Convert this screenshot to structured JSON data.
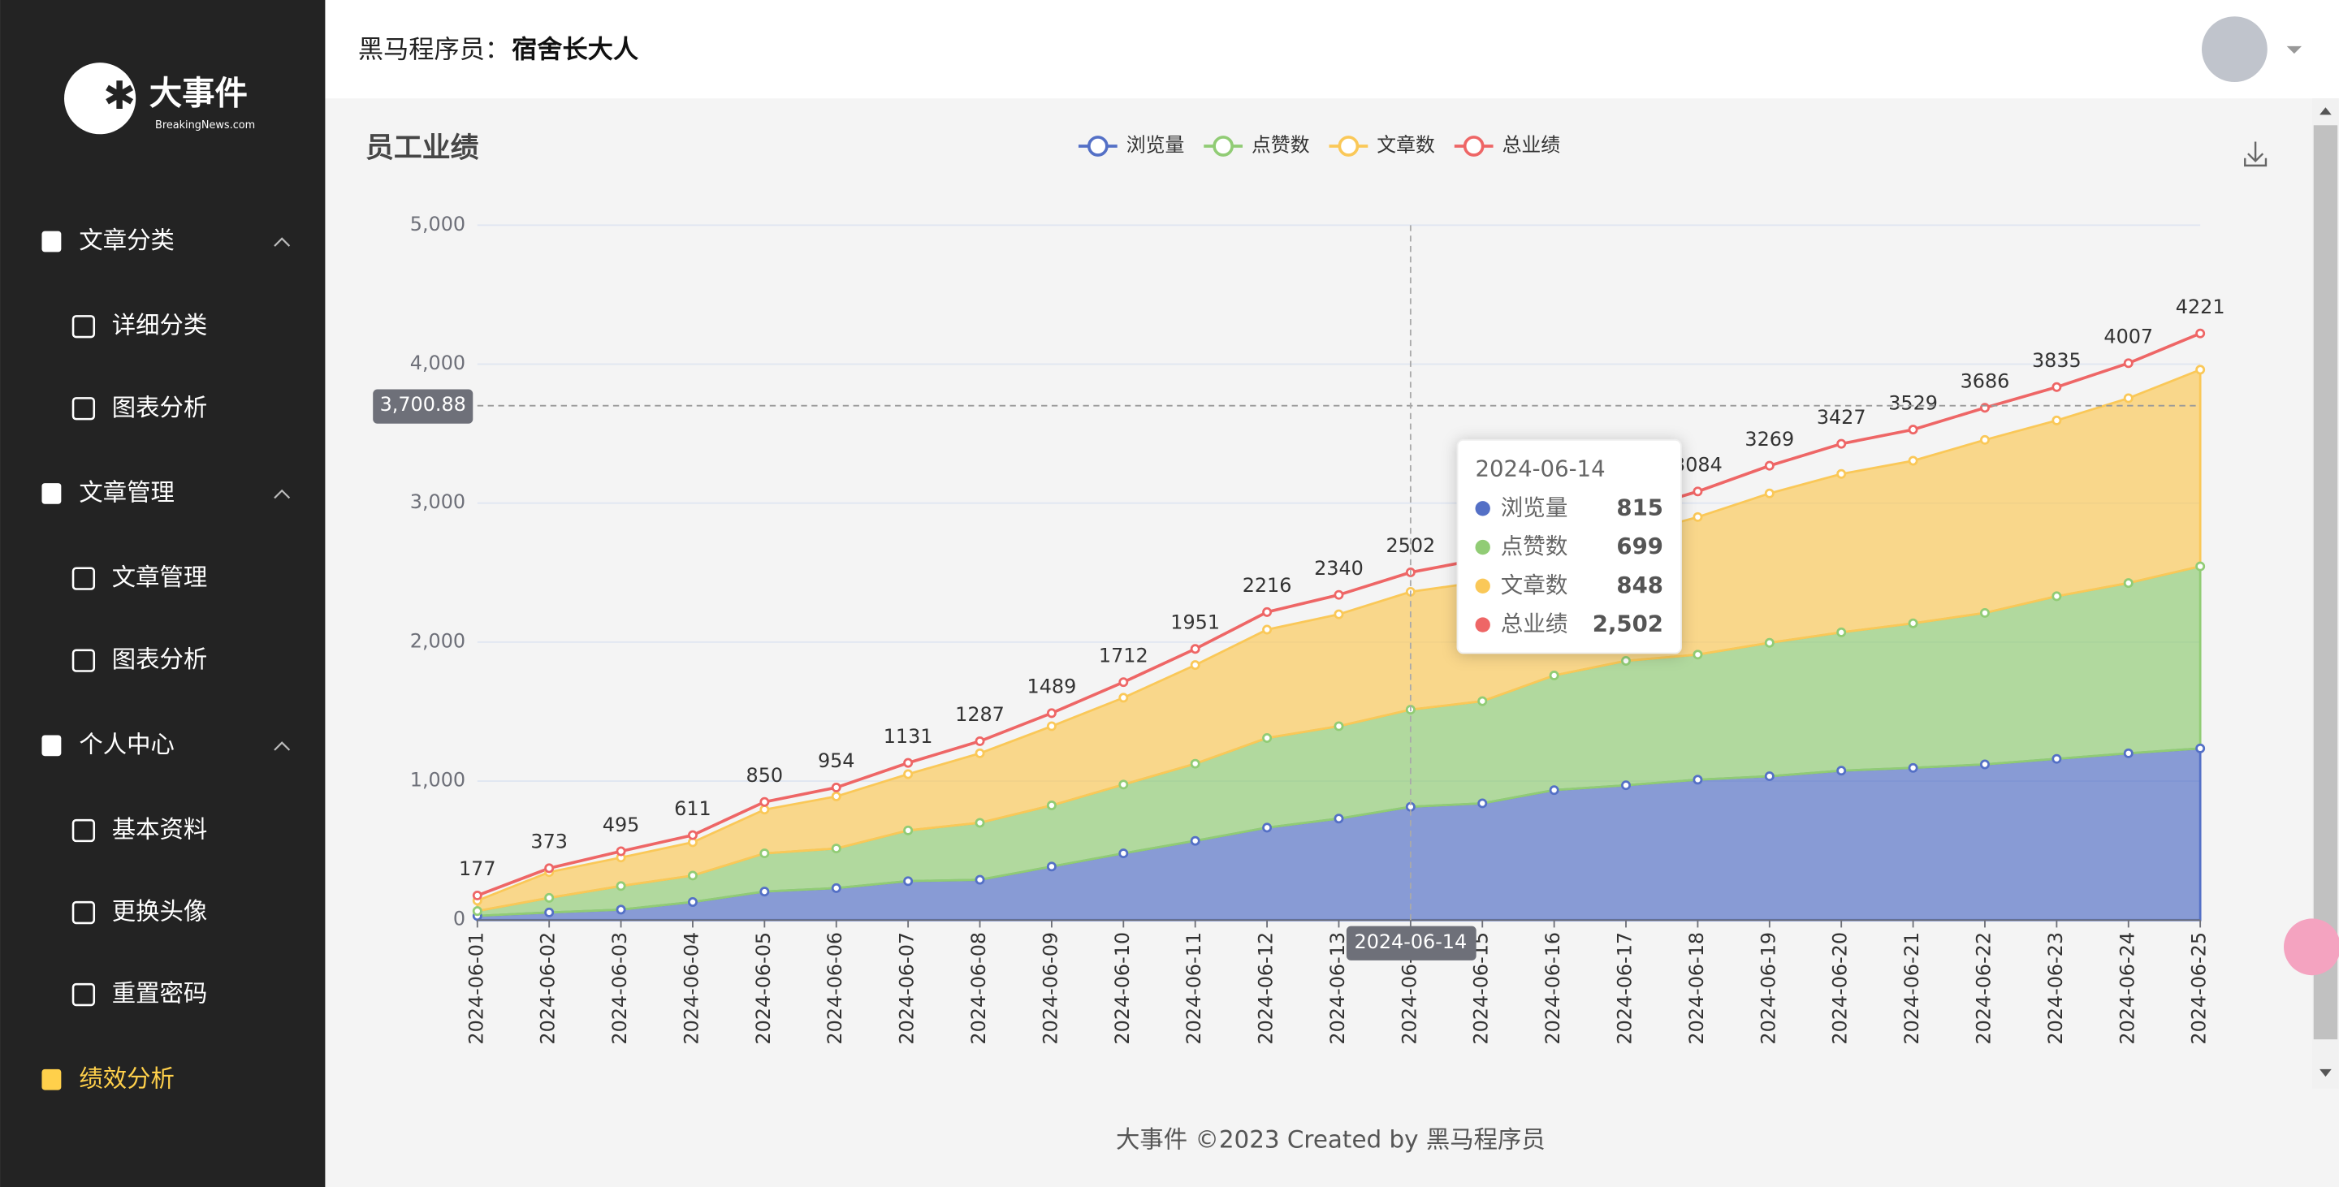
{
  "sidebar": {
    "logo": {
      "title": "大事件",
      "subtitle": "BreakingNews.com"
    },
    "menu": [
      {
        "label": "文章分类",
        "children": [
          "详细分类",
          "图表分析"
        ]
      },
      {
        "label": "文章管理",
        "children": [
          "文章管理",
          "图表分析"
        ]
      },
      {
        "label": "个人中心",
        "children": [
          "基本资料",
          "更换头像",
          "重置密码"
        ]
      },
      {
        "label": "绩效分析",
        "active": true
      }
    ]
  },
  "header": {
    "prefix": "黑马程序员：",
    "user": "宿舍长大人"
  },
  "chart_data": {
    "type": "stacked-area",
    "title": "员工业绩",
    "x": [
      "2024-06-01",
      "2024-06-02",
      "2024-06-03",
      "2024-06-04",
      "2024-06-05",
      "2024-06-06",
      "2024-06-07",
      "2024-06-08",
      "2024-06-09",
      "2024-06-10",
      "2024-06-11",
      "2024-06-12",
      "2024-06-13",
      "2024-06-14",
      "2024-06-15",
      "2024-06-16",
      "2024-06-17",
      "2024-06-18",
      "2024-06-19",
      "2024-06-20",
      "2024-06-21",
      "2024-06-22",
      "2024-06-23",
      "2024-06-24",
      "2024-06-25"
    ],
    "series": [
      {
        "name": "浏览量",
        "color": "#5470c6",
        "stack": true,
        "values": [
          30,
          55,
          75,
          130,
          205,
          230,
          280,
          290,
          385,
          480,
          570,
          665,
          730,
          815,
          840,
          935,
          970,
          1010,
          1035,
          1075,
          1095,
          1120,
          1160,
          1200,
          1235
        ]
      },
      {
        "name": "点赞数",
        "color": "#91cc75",
        "stack": true,
        "values": [
          35,
          105,
          170,
          190,
          275,
          285,
          365,
          410,
          440,
          495,
          555,
          645,
          665,
          699,
          735,
          825,
          895,
          900,
          960,
          995,
          1040,
          1090,
          1170,
          1225,
          1310
        ]
      },
      {
        "name": "文章数",
        "color": "#fac858",
        "stack": true,
        "values": [
          75,
          185,
          205,
          240,
          315,
          375,
          405,
          500,
          570,
          625,
          710,
          780,
          805,
          848,
          860,
          860,
          895,
          990,
          1075,
          1140,
          1170,
          1245,
          1265,
          1330,
          1415
        ]
      },
      {
        "name": "总业绩",
        "color": "#ee6666",
        "stack": false,
        "labels": true,
        "values": [
          177,
          373,
          495,
          611,
          850,
          954,
          1131,
          1287,
          1489,
          1712,
          1951,
          2216,
          2340,
          2502,
          2600,
          2780,
          2930,
          3084,
          3269,
          3427,
          3529,
          3686,
          3835,
          4007,
          4221
        ]
      }
    ],
    "ylim": [
      0,
      5000
    ],
    "yticks": [
      0,
      {
        "value": 1000,
        "label": "1,000"
      },
      {
        "value": 2000,
        "label": "2,000"
      },
      {
        "value": 3000,
        "label": "3,000"
      },
      {
        "value": 4000,
        "label": "4,000"
      },
      {
        "value": 5000,
        "label": "5,000"
      }
    ],
    "grid": true,
    "pointer_y": {
      "value": 3700.88,
      "label": "3,700.88"
    },
    "tooltip": {
      "x": "2024-06-14",
      "total_label": "2,502"
    }
  },
  "footer": "大事件 ©2023 Created by 黑马程序员"
}
